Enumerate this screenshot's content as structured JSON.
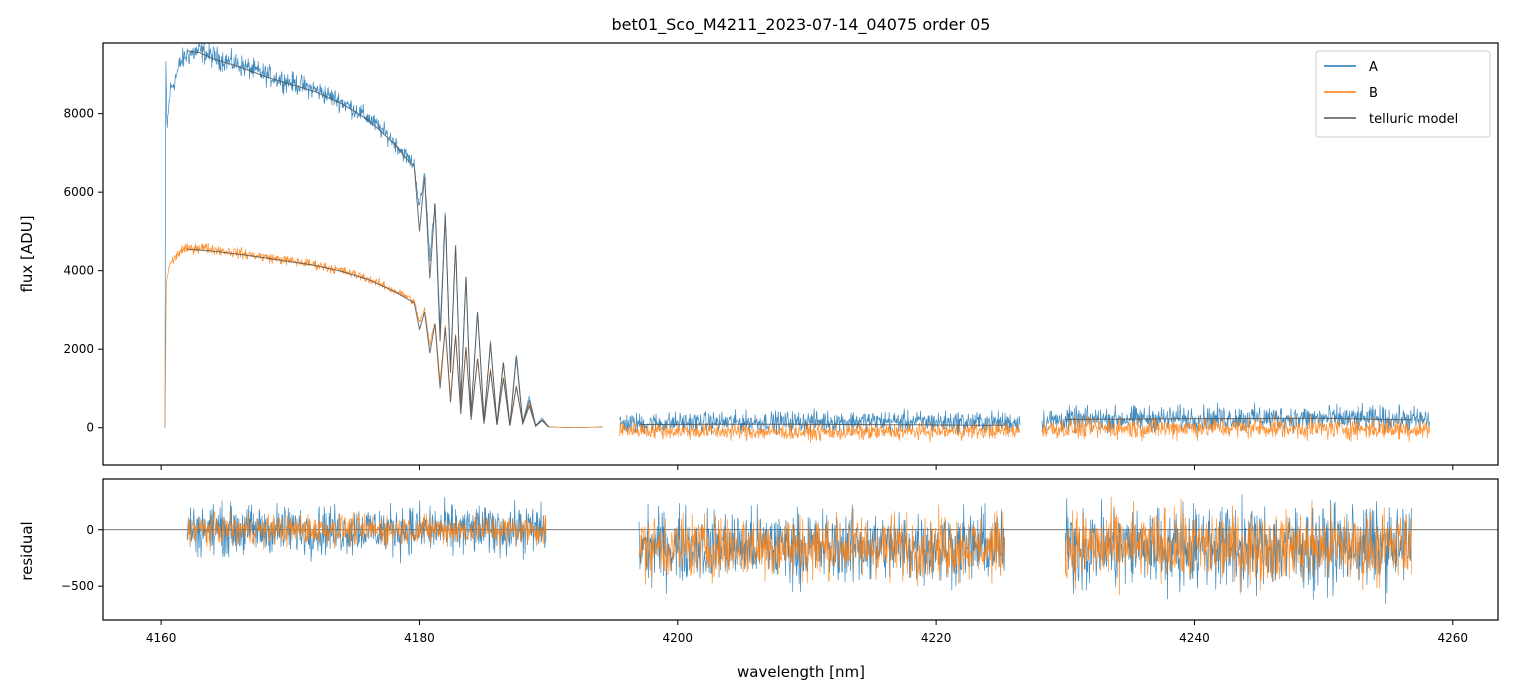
{
  "chart_data": [
    {
      "type": "line",
      "title": "bet01_Sco_M4211_2023-07-14_04075  order 05",
      "xlabel": "",
      "ylabel": "flux [ADU]",
      "xlim": [
        4155.5,
        4263.5
      ],
      "ylim": [
        -950,
        9800
      ],
      "yticks": [
        0,
        2000,
        4000,
        6000,
        8000
      ],
      "xticks": [
        4160,
        4180,
        4200,
        4220,
        4240,
        4260
      ],
      "grid": false,
      "legend": "top-right",
      "series": [
        {
          "name": "A",
          "color": "#1f77b4",
          "segments": [
            {
              "x": [
                4160.3,
                4160.35,
                4160.45,
                4160.7,
                4161.0,
                4161.5,
                4162.0,
                4163,
                4164,
                4166,
                4168,
                4170,
                4172,
                4174,
                4175,
                4176,
                4177,
                4178,
                4179,
                4179.6,
                4180.0,
                4180.4,
                4180.8,
                4181.2,
                4181.6,
                4182.0,
                4182.4,
                4182.8,
                4183.2,
                4183.6,
                4184.0,
                4184.5,
                4185.0,
                4185.5,
                4186.0,
                4186.5,
                4187.0,
                4187.5,
                4188.0,
                4188.5,
                4189.0,
                4189.5,
                4190,
                4192,
                4194.2
              ],
              "y": [
                0,
                9700,
                7600,
                8600,
                8800,
                9300,
                9500,
                9600,
                9450,
                9250,
                9000,
                8800,
                8600,
                8300,
                8100,
                7900,
                7600,
                7300,
                6900,
                6700,
                5600,
                6500,
                4300,
                5800,
                2500,
                5500,
                1600,
                4700,
                700,
                3900,
                400,
                3000,
                200,
                2200,
                100,
                1700,
                60,
                1900,
                150,
                800,
                60,
                250,
                20,
                0,
                20
              ],
              "noise": 0.025
            },
            {
              "x": [
                4195.5,
                4200,
                4205,
                4210,
                4215,
                4220,
                4226.5
              ],
              "y": [
                100,
                130,
                140,
                160,
                170,
                150,
                140
              ],
              "noise_abs": 220
            },
            {
              "x": [
                4228.2,
                4235,
                4240,
                4245,
                4250,
                4258.2
              ],
              "y": [
                180,
                230,
                240,
                250,
                240,
                200
              ],
              "noise_abs": 260
            }
          ]
        },
        {
          "name": "B",
          "color": "#ff7f0e",
          "segments": [
            {
              "x": [
                4160.3,
                4160.4,
                4160.6,
                4161.0,
                4161.5,
                4162.0,
                4163,
                4164,
                4166,
                4168,
                4170,
                4172,
                4174,
                4175,
                4176,
                4177,
                4178,
                4179,
                4179.6,
                4180.0,
                4180.4,
                4180.8,
                4181.2,
                4181.6,
                4182.0,
                4182.4,
                4182.8,
                4183.2,
                4183.6,
                4184.0,
                4184.5,
                4185.0,
                4185.5,
                4186.0,
                4186.5,
                4187.0,
                4187.5,
                4188.0,
                4188.5,
                4189.0,
                4189.5,
                4190,
                4192,
                4194.2
              ],
              "y": [
                0,
                3700,
                4100,
                4300,
                4500,
                4550,
                4600,
                4550,
                4450,
                4350,
                4250,
                4150,
                4000,
                3900,
                3800,
                3650,
                3500,
                3350,
                3200,
                2700,
                3000,
                2100,
                2700,
                1200,
                2600,
                800,
                2400,
                400,
                2100,
                250,
                1800,
                120,
                1500,
                80,
                1300,
                60,
                1100,
                120,
                600,
                60,
                200,
                20,
                0,
                20
              ],
              "noise": 0.025
            },
            {
              "x": [
                4195.5,
                4200,
                4205,
                4210,
                4215,
                4220,
                4226.5
              ],
              "y": [
                -50,
                -80,
                -100,
                -120,
                -110,
                -90,
                -70
              ],
              "noise_abs": 170
            },
            {
              "x": [
                4228.2,
                4235,
                4240,
                4245,
                4250,
                4258.2
              ],
              "y": [
                -20,
                -10,
                0,
                0,
                -20,
                -40
              ],
              "noise_abs": 220
            }
          ]
        },
        {
          "name": "telluric model",
          "color": "#555555",
          "segments": [
            {
              "x": [
                4162.0,
                4163,
                4164,
                4166,
                4168,
                4170,
                4172,
                4174,
                4175,
                4176,
                4177,
                4178,
                4179,
                4179.6,
                4180.0,
                4180.4,
                4180.8,
                4181.2,
                4181.6,
                4182.0,
                4182.4,
                4182.8,
                4183.2,
                4183.6,
                4184.0,
                4184.5,
                4185.0,
                4185.5,
                4186.0,
                4186.5,
                4187.0,
                4187.5,
                4188.0,
                4188.5,
                4189.0,
                4189.5,
                4190
              ],
              "y": [
                9600,
                9550,
                9400,
                9200,
                8950,
                8750,
                8550,
                8250,
                8050,
                7850,
                7550,
                7250,
                6850,
                6650,
                5000,
                6400,
                3800,
                5700,
                2200,
                5400,
                1400,
                4650,
                600,
                3850,
                350,
                2950,
                180,
                2150,
                90,
                1650,
                50,
                1800,
                100,
                700,
                40,
                200,
                20
              ]
            },
            {
              "x": [
                4162.0,
                4164,
                4166,
                4168,
                4170,
                4172,
                4174,
                4176,
                4178,
                4179.6,
                4180.0,
                4180.4,
                4180.8,
                4181.2,
                4181.6,
                4182.0,
                4182.4,
                4182.8,
                4183.2,
                4183.6,
                4184.0,
                4184.5,
                4185.0,
                4185.5,
                4186.0,
                4186.5,
                4187.0,
                4187.5,
                4188.0,
                4188.5,
                4189.0,
                4189.5,
                4190
              ],
              "y": [
                4550,
                4500,
                4420,
                4330,
                4230,
                4130,
                3980,
                3780,
                3480,
                3180,
                2500,
                2950,
                1900,
                2650,
                1000,
                2550,
                650,
                2350,
                350,
                2050,
                200,
                1750,
                100,
                1450,
                70,
                1250,
                50,
                1050,
                100,
                550,
                40,
                180,
                15
              ]
            },
            {
              "x": [
                4197,
                4205,
                4215,
                4225.3
              ],
              "y": [
                80,
                90,
                80,
                60
              ]
            },
            {
              "x": [
                4230,
                4240,
                4250,
                4256.8
              ],
              "y": [
                210,
                230,
                240,
                200
              ]
            }
          ]
        }
      ]
    },
    {
      "type": "line",
      "title": "",
      "xlabel": "wavelength [nm]",
      "ylabel": "residual",
      "xlim": [
        4155.5,
        4263.5
      ],
      "ylim": [
        -800,
        450
      ],
      "yticks": [
        -500,
        0
      ],
      "xticks": [
        4160,
        4180,
        4200,
        4220,
        4240,
        4260
      ],
      "hline": 0,
      "grid": false,
      "series": [
        {
          "name": "A",
          "color": "#1f77b4",
          "segments": [
            {
              "x": [
                4162.0,
                4189.8
              ],
              "y": [
                0,
                0
              ],
              "noise_abs": 180
            },
            {
              "x": [
                4197.0,
                4225.3
              ],
              "y": [
                -150,
                -150
              ],
              "noise_abs": 260
            },
            {
              "x": [
                4230.0,
                4256.8
              ],
              "y": [
                -150,
                -150
              ],
              "noise_abs": 300
            }
          ]
        },
        {
          "name": "B",
          "color": "#ff7f0e",
          "segments": [
            {
              "x": [
                4162.0,
                4189.8
              ],
              "y": [
                0,
                0
              ],
              "noise_abs": 110
            },
            {
              "x": [
                4197.0,
                4225.3
              ],
              "y": [
                -150,
                -150
              ],
              "noise_abs": 230
            },
            {
              "x": [
                4230.0,
                4256.8
              ],
              "y": [
                -150,
                -150
              ],
              "noise_abs": 260
            }
          ]
        }
      ]
    }
  ],
  "legend": {
    "entries": [
      {
        "label": "A",
        "color": "#1f77b4"
      },
      {
        "label": "B",
        "color": "#ff7f0e"
      },
      {
        "label": "telluric model",
        "color": "#555555"
      }
    ]
  }
}
